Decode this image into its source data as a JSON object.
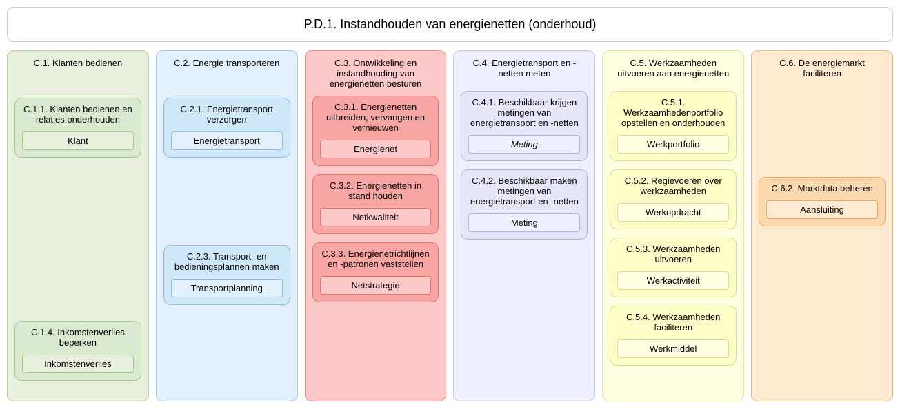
{
  "header": {
    "title": "P.D.1. Instandhouden van energienetten (onderhoud)"
  },
  "diagram": {
    "type": "infographic",
    "background_color": "#ffffff",
    "border_color_neutral": "#cccccc",
    "border_radius": 10,
    "title_fontsize": 18,
    "label_fontsize": 13
  },
  "columns": [
    {
      "id": "c1",
      "title": "C.1. Klanten bedienen",
      "bg": "#e8f0dd",
      "border": "#b6cf9d",
      "sub_bg": "#daead0",
      "sub_border": "#a6c78d",
      "tag_bg": "#e8f0dd",
      "tag_border": "#a6c78d",
      "boxes": [
        {
          "title": "C.1.1. Klanten bedienen en relaties onderhouden",
          "tag": "Klant",
          "italic": false,
          "top_spacer": 10
        },
        {
          "title": "C.1.4. Inkomstenverlies beperken",
          "tag": "Inkomstenverlies",
          "italic": false,
          "top_spacer": 225
        }
      ]
    },
    {
      "id": "c2",
      "title": "C.2. Energie transporteren",
      "bg": "#e1f0fa",
      "border": "#a0c9e6",
      "sub_bg": "#cfe8f7",
      "sub_border": "#8ebde0",
      "tag_bg": "#e1f0fa",
      "tag_border": "#8ebde0",
      "boxes": [
        {
          "title": "C.2.1. Energietransport verzorgen",
          "tag": "Energietransport",
          "italic": false,
          "top_spacer": 10
        },
        {
          "title": "C.2.3. Transport- en bedieningsplannen maken",
          "tag": "Transportplanning",
          "italic": false,
          "top_spacer": 115
        }
      ]
    },
    {
      "id": "c3",
      "title": "C.3. Ontwikkeling en instandhouding van energienetten besturen",
      "bg": "#fbc9c8",
      "border": "#e98b88",
      "sub_bg": "#f7a6a3",
      "sub_border": "#de7773",
      "tag_bg": "#fbc9c8",
      "tag_border": "#de7773",
      "boxes": [
        {
          "title": "C.3.1. Energienetten uitbreiden, vervangen en vernieuwen",
          "tag": "Energienet",
          "italic": false,
          "top_spacer": 0
        },
        {
          "title": "C.3.2. Energienetten in stand houden",
          "tag": "Netkwaliteit",
          "italic": false,
          "top_spacer": 0
        },
        {
          "title": "C.3.3. Energienetrichtlijnen en -patronen vaststellen",
          "tag": "Netstrategie",
          "italic": false,
          "top_spacer": 0
        }
      ]
    },
    {
      "id": "c4",
      "title": "C.4. Energietransport en -netten meten",
      "bg": "#eeefff",
      "border": "#c2c3e6",
      "sub_bg": "#e6e6f9",
      "sub_border": "#b4b5df",
      "tag_bg": "#eeefff",
      "tag_border": "#b4b5df",
      "boxes": [
        {
          "title": "C.4.1. Beschikbaar krijgen metingen van energietransport en -netten",
          "tag": "Meting",
          "italic": true,
          "top_spacer": 0
        },
        {
          "title": "C.4.2. Beschikbaar maken metingen van energietransport en -netten",
          "tag": "Meting",
          "italic": false,
          "top_spacer": 0
        }
      ]
    },
    {
      "id": "c5",
      "title": "C.5. Werkzaamheden uitvoeren aan energienetten",
      "bg": "#ffffe1",
      "border": "#e6e69f",
      "sub_bg": "#fdfdc7",
      "sub_border": "#dede8e",
      "tag_bg": "#ffffe1",
      "tag_border": "#dede8e",
      "boxes": [
        {
          "title": "C.5.1. Werkzaamhedenportfolio opstellen en onderhouden",
          "tag": "Werkportfolio",
          "italic": false,
          "top_spacer": 0
        },
        {
          "title": "C.5.2. Regievoeren over werkzaamheden",
          "tag": "Werkopdracht",
          "italic": false,
          "top_spacer": 0
        },
        {
          "title": "C.5.3. Werkzaamheden uitvoeren",
          "tag": "Werkactiviteit",
          "italic": false,
          "top_spacer": 0
        },
        {
          "title": "C.5.4. Werkzaamheden faciliteren",
          "tag": "Werkmiddel",
          "italic": false,
          "top_spacer": 0
        }
      ]
    },
    {
      "id": "c6",
      "title": "C.6. De energiemarkt faciliteren",
      "bg": "#feead1",
      "border": "#f0b77c",
      "sub_bg": "#fcd8ae",
      "sub_border": "#e9a864",
      "tag_bg": "#feead1",
      "tag_border": "#e9a864",
      "boxes": [
        {
          "title": "C.6.2. Marktdata beheren",
          "tag": "Aansluiting",
          "italic": false,
          "top_spacer": 125
        }
      ]
    }
  ]
}
